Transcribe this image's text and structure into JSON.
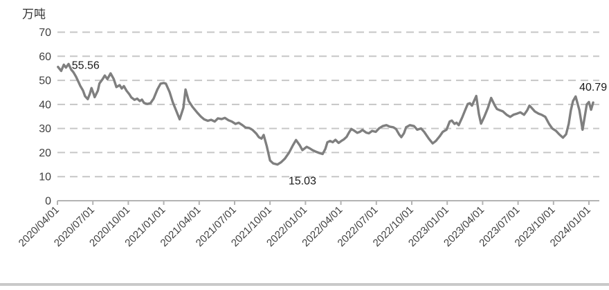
{
  "chart": {
    "unit_label": "万吨"
  },
  "chart_data": {
    "type": "line",
    "title": "",
    "ylabel": "万吨",
    "xlabel": "",
    "ylim": [
      0,
      70
    ],
    "yticks": [
      0,
      10,
      20,
      30,
      40,
      50,
      60,
      70
    ],
    "x_axis_start": "2020/04/01",
    "x_axis_end": "2024/01/01",
    "x_tick_interval": "3 months",
    "xticklabels": [
      "2020/04/01",
      "2020/07/01",
      "2020/10/01",
      "2021/01/01",
      "2021/04/01",
      "2021/07/01",
      "2021/10/01",
      "2022/01/01",
      "2022/04/01",
      "2022/07/01",
      "2022/10/01",
      "2023/01/01",
      "2023/04/01",
      "2023/07/01",
      "2023/10/01",
      "2024/01/01"
    ],
    "grid": "horizontal-dashed",
    "legend": "none",
    "line_color": "#7f7f7f",
    "gridline_color": "#c6c6c6",
    "axis_color": "#b3b3b3",
    "text_color": "#3f3f3f",
    "label_color": "#1a1a1a",
    "series": [
      {
        "name": "",
        "points": [
          [
            0.001,
            55.56
          ],
          [
            0.007,
            53.9
          ],
          [
            0.012,
            56.5
          ],
          [
            0.016,
            55.3
          ],
          [
            0.021,
            56.8
          ],
          [
            0.026,
            54.4
          ],
          [
            0.03,
            53.4
          ],
          [
            0.035,
            51.5
          ],
          [
            0.039,
            49.6
          ],
          [
            0.043,
            47.7
          ],
          [
            0.048,
            45.8
          ],
          [
            0.052,
            43.4
          ],
          [
            0.057,
            42.2
          ],
          [
            0.061,
            44.4
          ],
          [
            0.064,
            46.8
          ],
          [
            0.068,
            44.4
          ],
          [
            0.07,
            43.0
          ],
          [
            0.076,
            45.7
          ],
          [
            0.079,
            48.7
          ],
          [
            0.085,
            50.5
          ],
          [
            0.089,
            52.0
          ],
          [
            0.094,
            50.5
          ],
          [
            0.1,
            52.9
          ],
          [
            0.106,
            50.5
          ],
          [
            0.111,
            47.2
          ],
          [
            0.117,
            48.0
          ],
          [
            0.121,
            46.6
          ],
          [
            0.125,
            47.6
          ],
          [
            0.13,
            45.7
          ],
          [
            0.135,
            44.3
          ],
          [
            0.139,
            42.9
          ],
          [
            0.145,
            41.9
          ],
          [
            0.15,
            42.4
          ],
          [
            0.155,
            41.4
          ],
          [
            0.159,
            42.0
          ],
          [
            0.163,
            40.6
          ],
          [
            0.169,
            40.2
          ],
          [
            0.175,
            40.5
          ],
          [
            0.181,
            42.4
          ],
          [
            0.188,
            46.2
          ],
          [
            0.194,
            48.6
          ],
          [
            0.2,
            48.9
          ],
          [
            0.204,
            48.6
          ],
          [
            0.211,
            45.2
          ],
          [
            0.217,
            40.9
          ],
          [
            0.224,
            37.1
          ],
          [
            0.23,
            33.8
          ],
          [
            0.237,
            38.6
          ],
          [
            0.241,
            46.2
          ],
          [
            0.247,
            41.4
          ],
          [
            0.254,
            39.0
          ],
          [
            0.263,
            36.6
          ],
          [
            0.27,
            34.9
          ],
          [
            0.276,
            33.8
          ],
          [
            0.283,
            33.2
          ],
          [
            0.289,
            33.6
          ],
          [
            0.296,
            32.9
          ],
          [
            0.302,
            34.2
          ],
          [
            0.309,
            33.9
          ],
          [
            0.315,
            34.4
          ],
          [
            0.322,
            33.4
          ],
          [
            0.328,
            32.9
          ],
          [
            0.335,
            31.9
          ],
          [
            0.341,
            32.4
          ],
          [
            0.348,
            31.4
          ],
          [
            0.354,
            30.4
          ],
          [
            0.361,
            30.2
          ],
          [
            0.367,
            29.4
          ],
          [
            0.374,
            27.9
          ],
          [
            0.379,
            26.4
          ],
          [
            0.384,
            25.8
          ],
          [
            0.388,
            27.3
          ],
          [
            0.394,
            22.5
          ],
          [
            0.4,
            16.7
          ],
          [
            0.406,
            15.5
          ],
          [
            0.414,
            15.03
          ],
          [
            0.421,
            16.0
          ],
          [
            0.428,
            17.5
          ],
          [
            0.436,
            20.0
          ],
          [
            0.443,
            23.0
          ],
          [
            0.449,
            25.2
          ],
          [
            0.456,
            23.0
          ],
          [
            0.461,
            21.0
          ],
          [
            0.469,
            22.4
          ],
          [
            0.475,
            21.7
          ],
          [
            0.48,
            21.0
          ],
          [
            0.487,
            20.3
          ],
          [
            0.493,
            19.8
          ],
          [
            0.499,
            19.4
          ],
          [
            0.504,
            21.5
          ],
          [
            0.508,
            24.3
          ],
          [
            0.513,
            24.8
          ],
          [
            0.518,
            24.3
          ],
          [
            0.523,
            25.3
          ],
          [
            0.529,
            24.0
          ],
          [
            0.534,
            24.8
          ],
          [
            0.539,
            25.5
          ],
          [
            0.544,
            26.5
          ],
          [
            0.549,
            28.5
          ],
          [
            0.553,
            29.8
          ],
          [
            0.559,
            29.0
          ],
          [
            0.564,
            28.2
          ],
          [
            0.569,
            28.6
          ],
          [
            0.574,
            29.4
          ],
          [
            0.581,
            28.3
          ],
          [
            0.586,
            28.0
          ],
          [
            0.592,
            29.0
          ],
          [
            0.599,
            28.6
          ],
          [
            0.605,
            30.0
          ],
          [
            0.612,
            31.0
          ],
          [
            0.619,
            31.4
          ],
          [
            0.625,
            30.8
          ],
          [
            0.632,
            30.5
          ],
          [
            0.637,
            29.8
          ],
          [
            0.643,
            27.5
          ],
          [
            0.647,
            26.4
          ],
          [
            0.652,
            28.0
          ],
          [
            0.656,
            30.5
          ],
          [
            0.663,
            31.4
          ],
          [
            0.671,
            31.0
          ],
          [
            0.677,
            29.5
          ],
          [
            0.684,
            30.0
          ],
          [
            0.69,
            28.6
          ],
          [
            0.699,
            25.7
          ],
          [
            0.706,
            23.8
          ],
          [
            0.712,
            24.8
          ],
          [
            0.719,
            26.7
          ],
          [
            0.725,
            28.6
          ],
          [
            0.732,
            29.5
          ],
          [
            0.738,
            32.9
          ],
          [
            0.742,
            33.3
          ],
          [
            0.747,
            31.9
          ],
          [
            0.751,
            32.4
          ],
          [
            0.755,
            31.4
          ],
          [
            0.762,
            34.8
          ],
          [
            0.767,
            37.6
          ],
          [
            0.772,
            40.2
          ],
          [
            0.776,
            40.5
          ],
          [
            0.78,
            39.5
          ],
          [
            0.784,
            41.5
          ],
          [
            0.788,
            43.5
          ],
          [
            0.793,
            36.0
          ],
          [
            0.797,
            32.0
          ],
          [
            0.803,
            34.8
          ],
          [
            0.81,
            38.6
          ],
          [
            0.816,
            42.7
          ],
          [
            0.823,
            39.5
          ],
          [
            0.827,
            38.1
          ],
          [
            0.832,
            37.6
          ],
          [
            0.838,
            37.1
          ],
          [
            0.845,
            35.7
          ],
          [
            0.852,
            34.8
          ],
          [
            0.858,
            35.7
          ],
          [
            0.865,
            36.2
          ],
          [
            0.871,
            36.7
          ],
          [
            0.878,
            35.7
          ],
          [
            0.884,
            37.6
          ],
          [
            0.888,
            39.5
          ],
          [
            0.892,
            38.6
          ],
          [
            0.898,
            37.1
          ],
          [
            0.905,
            36.2
          ],
          [
            0.911,
            35.7
          ],
          [
            0.918,
            34.8
          ],
          [
            0.925,
            31.9
          ],
          [
            0.931,
            30.0
          ],
          [
            0.938,
            29.0
          ],
          [
            0.944,
            27.6
          ],
          [
            0.951,
            26.2
          ],
          [
            0.957,
            27.6
          ],
          [
            0.962,
            31.9
          ],
          [
            0.966,
            37.6
          ],
          [
            0.97,
            41.4
          ],
          [
            0.975,
            43.3
          ],
          [
            0.982,
            37.6
          ],
          [
            0.988,
            29.5
          ],
          [
            0.992,
            34.8
          ],
          [
            0.996,
            40.0
          ],
          [
            1.0,
            41.0
          ],
          [
            1.004,
            37.8
          ],
          [
            1.008,
            40.79
          ]
        ]
      }
    ],
    "annotations": [
      {
        "t": 0.001,
        "v": 55.56,
        "text": "55.56",
        "placement": "right"
      },
      {
        "t": 0.414,
        "v": 15.03,
        "text": "15.03",
        "placement": "below"
      },
      {
        "t": 1.008,
        "v": 40.79,
        "text": "40.79",
        "placement": "above"
      }
    ]
  }
}
